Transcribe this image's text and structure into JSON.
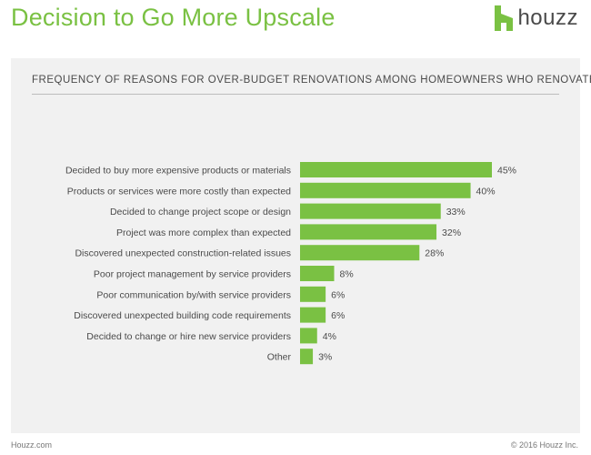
{
  "header": {
    "title": "Decision to Go More Upscale",
    "logo_text": "houzz"
  },
  "colors": {
    "accent": "#7ac143",
    "bar": "#7ac143",
    "panel": "#f1f1f1",
    "text": "#4a4a4a"
  },
  "chart_data": {
    "type": "bar",
    "orientation": "horizontal",
    "title": "FREQUENCY OF REASONS FOR OVER-BUDGET RENOVATIONS AMONG HOMEOWNERS WHO RENOVATED",
    "categories": [
      "Decided to buy more expensive products or materials",
      "Products or services were more costly than expected",
      "Decided to change project scope or design",
      "Project was more complex than expected",
      "Discovered unexpected construction-related issues",
      "Poor project management by service providers",
      "Poor communication by/with service providers",
      "Discovered unexpected building code requirements",
      "Decided to change or hire new service providers",
      "Other"
    ],
    "values": [
      45,
      40,
      33,
      32,
      28,
      8,
      6,
      6,
      4,
      3
    ],
    "data_labels": [
      "45%",
      "40%",
      "33%",
      "32%",
      "28%",
      "8%",
      "6%",
      "6%",
      "4%",
      "3%"
    ],
    "unit": "%",
    "xlim": [
      0,
      45
    ],
    "grid": false,
    "legend": "none"
  },
  "footer": {
    "source": "Houzz.com",
    "copyright": "© 2016 Houzz Inc."
  }
}
